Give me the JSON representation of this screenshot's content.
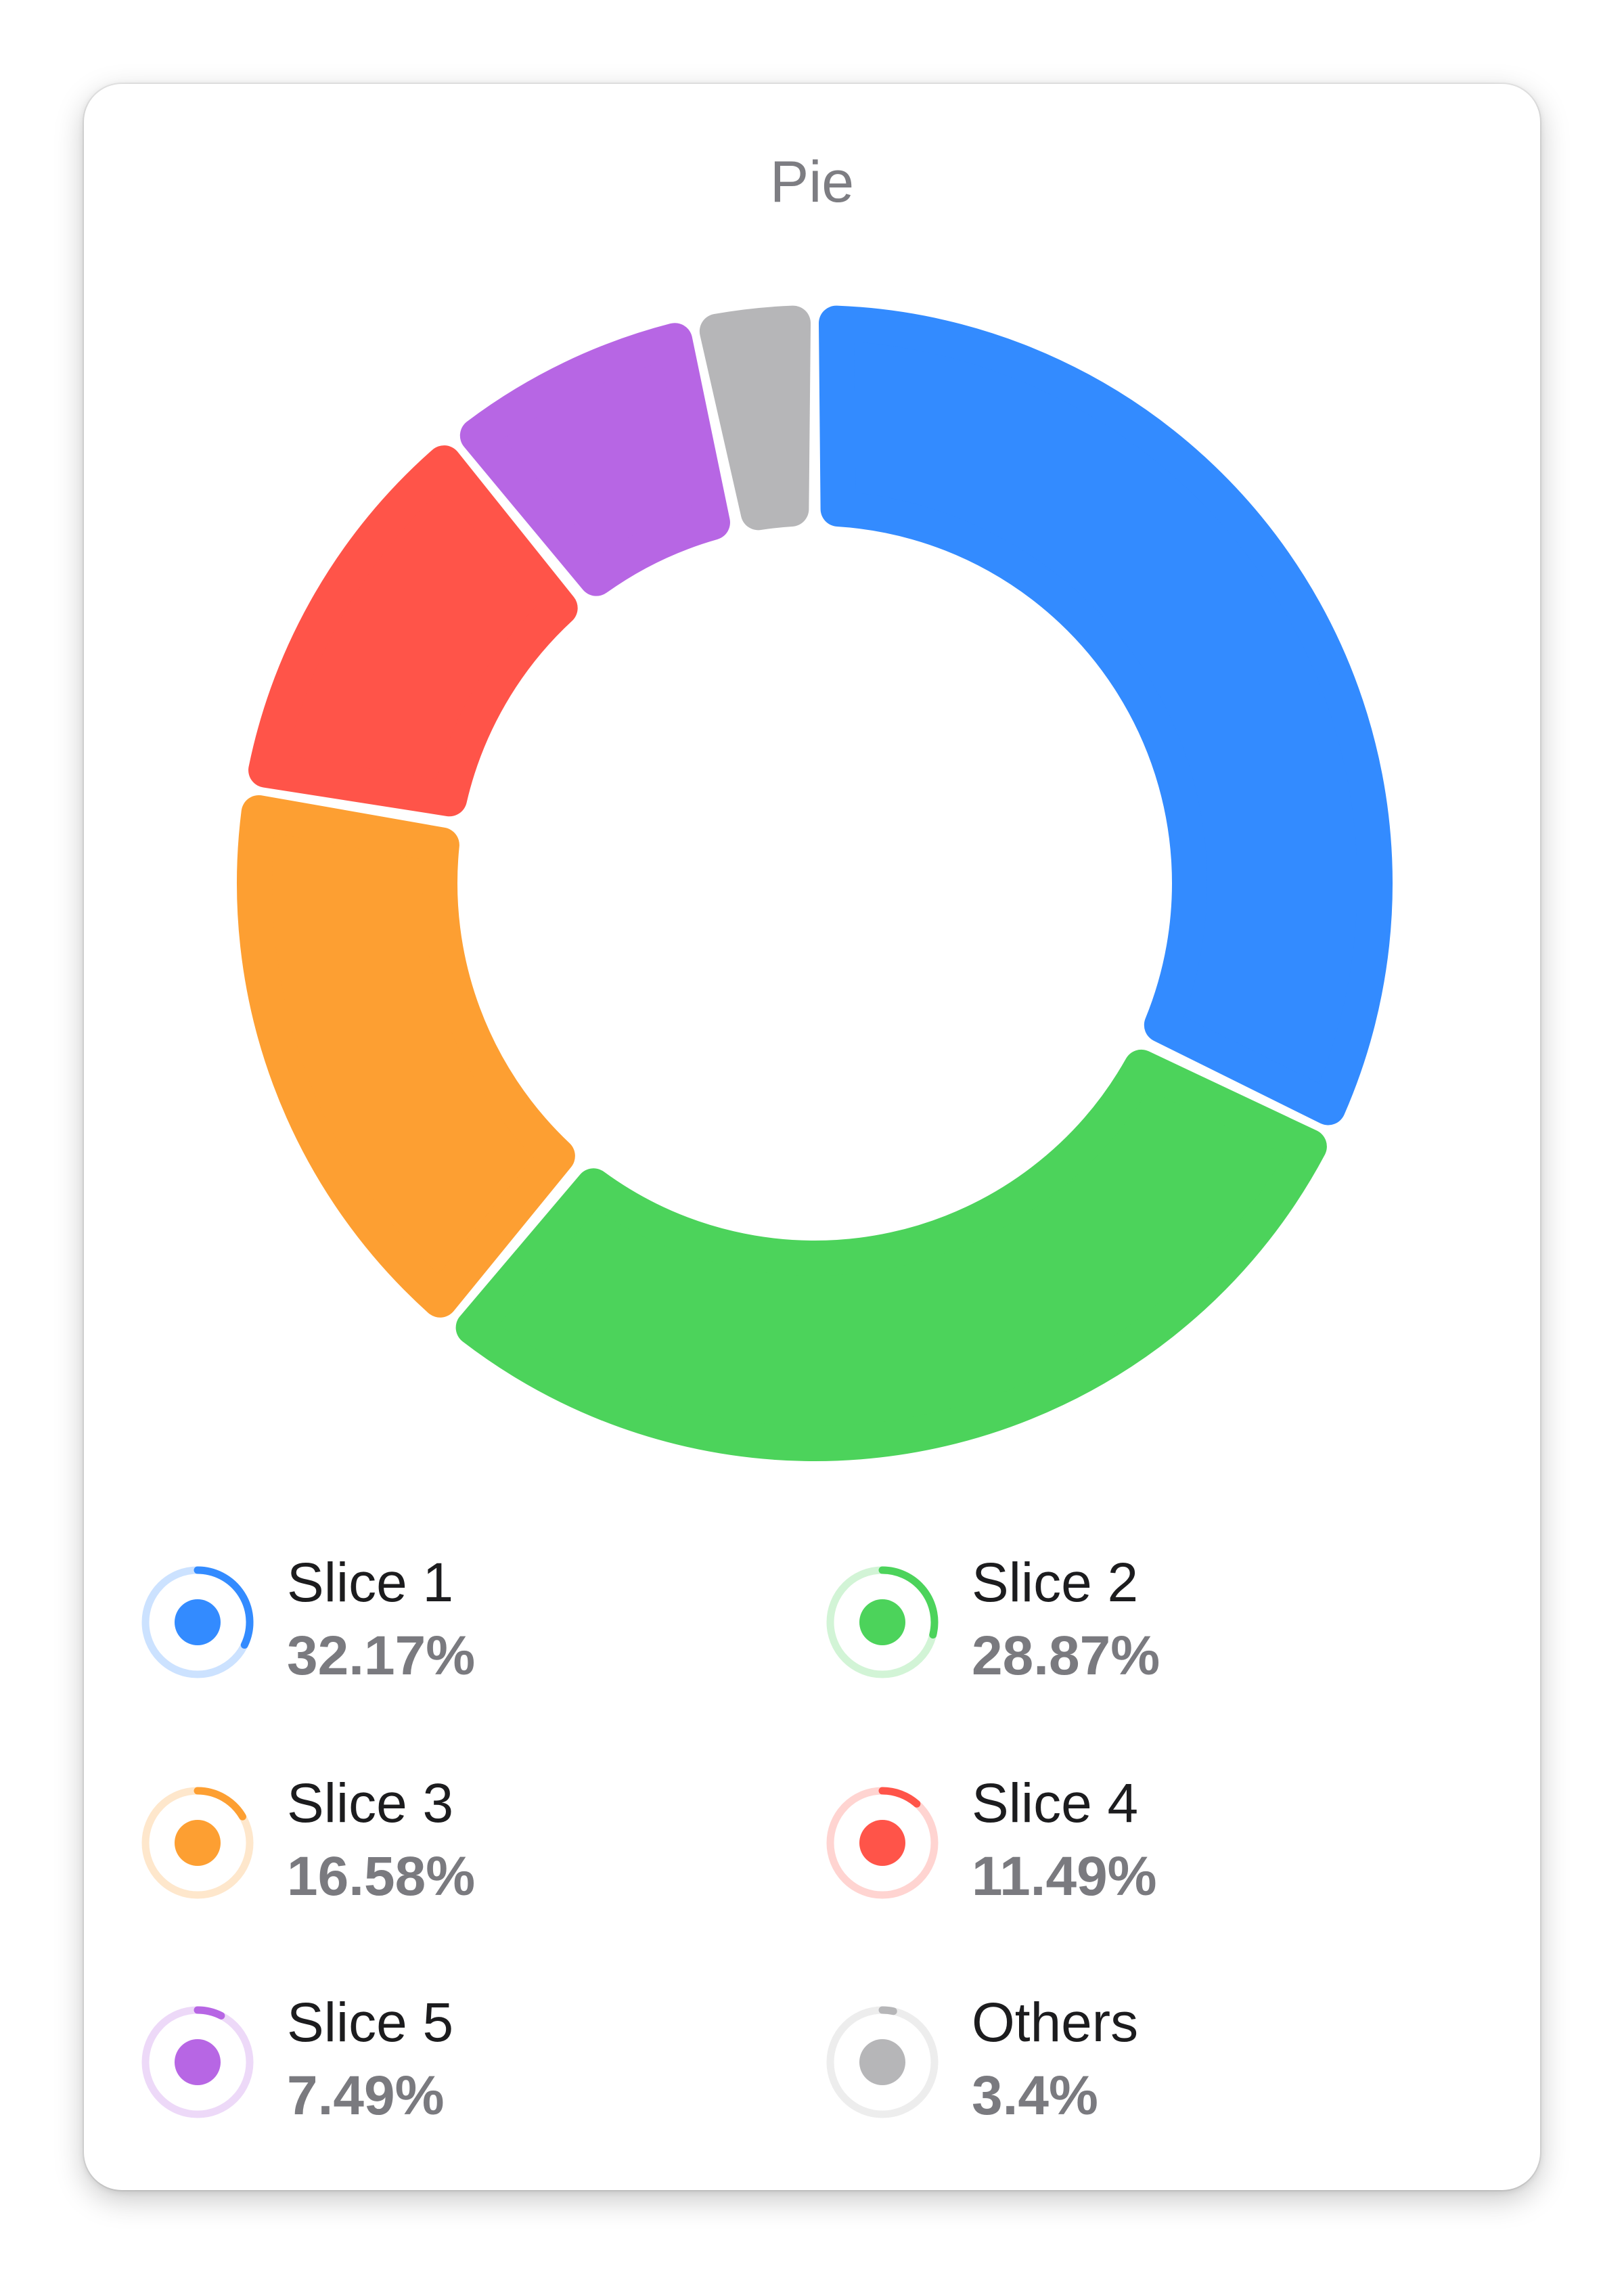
{
  "title": "Pie",
  "chart_data": {
    "type": "pie",
    "style": "donut",
    "title": "Pie",
    "slices": [
      {
        "name": "Slice 1",
        "value": 32.17,
        "label": "32.17%",
        "color": "#338bff"
      },
      {
        "name": "Slice 2",
        "value": 28.87,
        "label": "28.87%",
        "color": "#4cd35b"
      },
      {
        "name": "Slice 3",
        "value": 16.58,
        "label": "16.58%",
        "color": "#fd9f32"
      },
      {
        "name": "Slice 4",
        "value": 11.49,
        "label": "11.49%",
        "color": "#ff5449"
      },
      {
        "name": "Slice 5",
        "value": 7.49,
        "label": "7.49%",
        "color": "#b766e4"
      },
      {
        "name": "Others",
        "value": 3.4,
        "label": "3.4%",
        "color": "#b6b6b8"
      }
    ],
    "legend": "bottom"
  }
}
